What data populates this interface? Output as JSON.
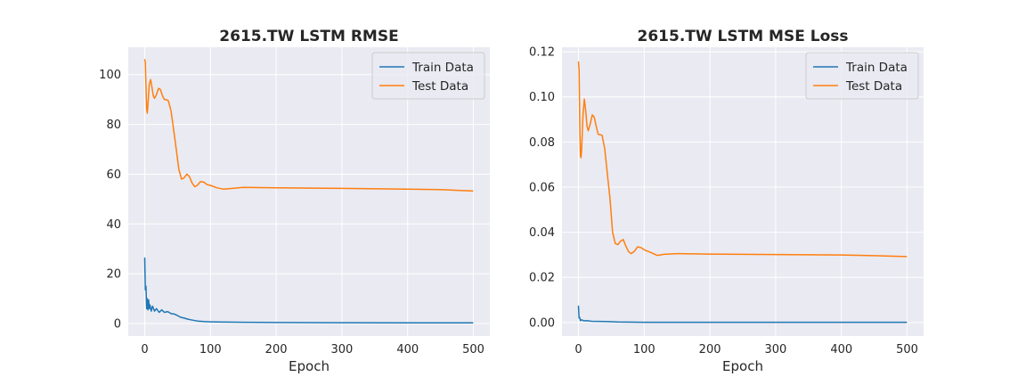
{
  "chart_data": [
    {
      "type": "line",
      "title": "2615.TW  LSTM RMSE",
      "xlabel": "Epoch",
      "ylabel": "",
      "xlim": [
        -25,
        525
      ],
      "ylim": [
        -5,
        111
      ],
      "xticks": [
        0,
        100,
        200,
        300,
        400,
        500
      ],
      "yticks": [
        0,
        20,
        40,
        60,
        80,
        100
      ],
      "ytick_decimals": 0,
      "grid": true,
      "legend": "top-right",
      "series": [
        {
          "name": "Train Data",
          "color": "#1f77b4",
          "x": [
            0,
            1,
            2,
            3,
            4,
            5,
            6,
            7,
            8,
            10,
            12,
            15,
            18,
            22,
            26,
            30,
            35,
            40,
            45,
            50,
            55,
            60,
            65,
            70,
            80,
            90,
            100,
            120,
            150,
            200,
            300,
            400,
            499
          ],
          "y": [
            26.3,
            13.5,
            15,
            6,
            10,
            5.5,
            9.5,
            6,
            7.5,
            5,
            7,
            5,
            6,
            4.5,
            5.5,
            4.5,
            4.8,
            4,
            3.8,
            3.2,
            2.5,
            2.2,
            1.8,
            1.5,
            1,
            0.8,
            0.7,
            0.6,
            0.5,
            0.4,
            0.35,
            0.3,
            0.3
          ]
        },
        {
          "name": "Test Data",
          "color": "#ff7f0e",
          "x": [
            0,
            1,
            2,
            3,
            4,
            5,
            7,
            9,
            11,
            13,
            15,
            18,
            21,
            24,
            27,
            30,
            33,
            36,
            40,
            44,
            48,
            52,
            56,
            60,
            64,
            68,
            72,
            76,
            80,
            85,
            90,
            95,
            100,
            110,
            120,
            130,
            150,
            200,
            300,
            400,
            450,
            499
          ],
          "y": [
            106,
            105,
            95,
            86,
            84.5,
            88,
            96,
            98,
            95,
            91.5,
            90.5,
            92,
            94.5,
            94,
            91.5,
            90,
            90,
            89.5,
            85.5,
            78,
            70,
            62,
            58,
            58.5,
            60,
            59,
            56.5,
            55,
            55.5,
            57,
            56.8,
            55.8,
            55.5,
            54.5,
            54,
            54.2,
            54.7,
            54.5,
            54.3,
            54,
            53.8,
            53.3
          ]
        }
      ]
    },
    {
      "type": "line",
      "title": "2615.TW  LSTM MSE Loss",
      "xlabel": "Epoch",
      "ylabel": "",
      "xlim": [
        -25,
        525
      ],
      "ylim": [
        -0.006,
        0.122
      ],
      "xticks": [
        0,
        100,
        200,
        300,
        400,
        500
      ],
      "yticks": [
        0.0,
        0.02,
        0.04,
        0.06,
        0.08,
        0.1,
        0.12
      ],
      "ytick_decimals": 2,
      "grid": true,
      "legend": "top-right",
      "series": [
        {
          "name": "Train Data",
          "color": "#1f77b4",
          "x": [
            0,
            1,
            2,
            3,
            5,
            8,
            12,
            20,
            40,
            60,
            100,
            200,
            300,
            400,
            499
          ],
          "y": [
            0.0072,
            0.002,
            0.0022,
            0.0008,
            0.0012,
            0.0007,
            0.0008,
            0.0005,
            0.0004,
            0.0002,
            0.0001,
            0.0001,
            0.0001,
            0.0001,
            0.0001
          ],
          "sort": true
        },
        {
          "name": "Test Data",
          "color": "#ff7f0e",
          "x": [
            0,
            1,
            2,
            3,
            4,
            5,
            7,
            9,
            11,
            13,
            15,
            18,
            21,
            24,
            27,
            30,
            33,
            36,
            40,
            44,
            48,
            52,
            56,
            60,
            64,
            68,
            72,
            76,
            80,
            85,
            90,
            95,
            100,
            110,
            120,
            130,
            150,
            200,
            300,
            400,
            450,
            499
          ],
          "y": [
            0.1155,
            0.112,
            0.09,
            0.074,
            0.073,
            0.077,
            0.092,
            0.099,
            0.094,
            0.087,
            0.085,
            0.088,
            0.092,
            0.091,
            0.087,
            0.0835,
            0.0832,
            0.083,
            0.077,
            0.066,
            0.055,
            0.04,
            0.035,
            0.0345,
            0.036,
            0.0368,
            0.034,
            0.0315,
            0.0305,
            0.0315,
            0.0335,
            0.0332,
            0.0322,
            0.031,
            0.0297,
            0.0302,
            0.0305,
            0.0303,
            0.0301,
            0.0299,
            0.0296,
            0.0292
          ]
        }
      ]
    }
  ]
}
